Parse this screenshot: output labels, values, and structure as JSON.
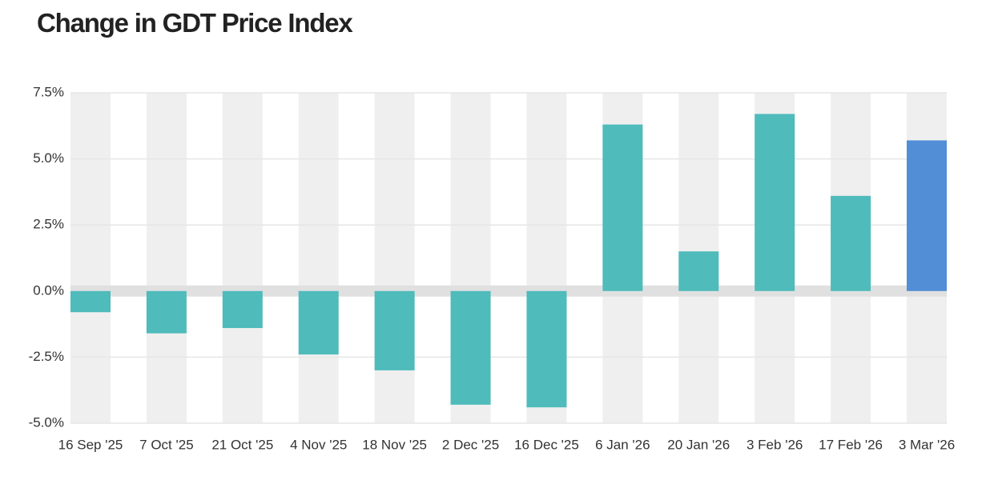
{
  "chart_data": {
    "type": "bar",
    "title": "Change in GDT Price Index",
    "categories": [
      "16 Sep '25",
      "7 Oct '25",
      "21 Oct '25",
      "4 Nov '25",
      "18 Nov '25",
      "2 Dec '25",
      "16 Dec '25",
      "6 Jan '26",
      "20 Jan '26",
      "3 Feb '26",
      "17 Feb '26",
      "3 Mar '26"
    ],
    "values": [
      -0.8,
      -1.6,
      -1.4,
      -2.4,
      -3.0,
      -4.3,
      -4.4,
      6.3,
      1.5,
      6.7,
      3.6,
      5.7
    ],
    "colors": [
      "#4fbbbb",
      "#4fbbbb",
      "#4fbbbb",
      "#4fbbbb",
      "#4fbbbb",
      "#4fbbbb",
      "#4fbbbb",
      "#4fbbbb",
      "#4fbbbb",
      "#4fbbbb",
      "#4fbbbb",
      "#518ed6"
    ],
    "ylim": [
      -5.0,
      7.5
    ],
    "yticks": [
      {
        "value": -5.0,
        "label": "-5.0%"
      },
      {
        "value": -2.5,
        "label": "-2.5%"
      },
      {
        "value": 0.0,
        "label": "0.0%"
      },
      {
        "value": 2.5,
        "label": "2.5%"
      },
      {
        "value": 5.0,
        "label": "5.0%"
      },
      {
        "value": 7.5,
        "label": "7.5%"
      }
    ],
    "grid": true
  }
}
